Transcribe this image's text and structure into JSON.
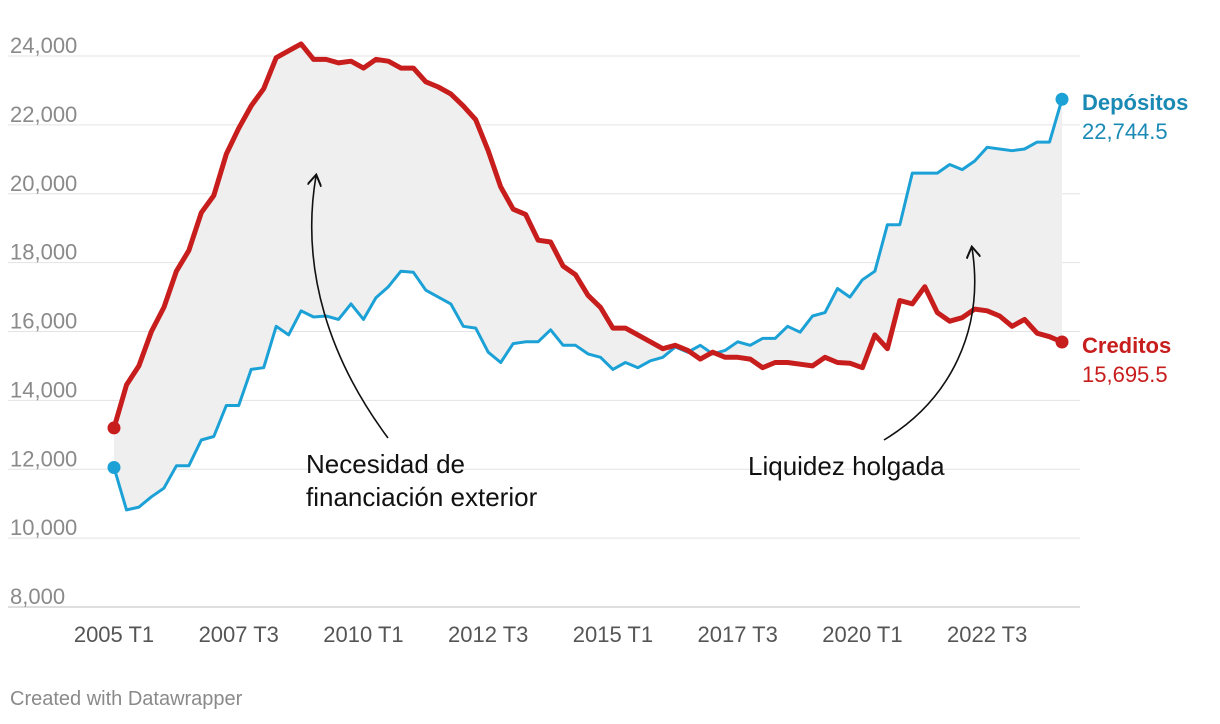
{
  "chart_data": {
    "type": "area",
    "x": [
      "2005 T1",
      "2005 T2",
      "2005 T3",
      "2005 T4",
      "2006 T1",
      "2006 T2",
      "2006 T3",
      "2006 T4",
      "2007 T1",
      "2007 T2",
      "2007 T3",
      "2007 T4",
      "2008 T1",
      "2008 T2",
      "2008 T3",
      "2008 T4",
      "2009 T1",
      "2009 T2",
      "2009 T3",
      "2009 T4",
      "2010 T1",
      "2010 T2",
      "2010 T3",
      "2010 T4",
      "2011 T1",
      "2011 T2",
      "2011 T3",
      "2011 T4",
      "2012 T1",
      "2012 T2",
      "2012 T3",
      "2012 T4",
      "2013 T1",
      "2013 T2",
      "2013 T3",
      "2013 T4",
      "2014 T1",
      "2014 T2",
      "2014 T3",
      "2014 T4",
      "2015 T1",
      "2015 T2",
      "2015 T3",
      "2015 T4",
      "2016 T1",
      "2016 T2",
      "2016 T3",
      "2016 T4",
      "2017 T1",
      "2017 T2",
      "2017 T3",
      "2017 T4",
      "2018 T1",
      "2018 T2",
      "2018 T3",
      "2018 T4",
      "2019 T1",
      "2019 T2",
      "2019 T3",
      "2019 T4",
      "2020 T1",
      "2020 T2",
      "2020 T3",
      "2020 T4",
      "2021 T1",
      "2021 T2",
      "2021 T3",
      "2021 T4",
      "2022 T1",
      "2022 T2",
      "2022 T3",
      "2022 T4",
      "2023 T1",
      "2023 T2",
      "2023 T3",
      "2023 T4",
      "2024 T1"
    ],
    "series": [
      {
        "name": "Depósitos",
        "color": "#1ba1d6",
        "label_color": "#1a8ab5",
        "last_value_label": "22,744.5",
        "values": [
          12050,
          10820,
          10900,
          11200,
          11450,
          12100,
          12100,
          12850,
          12950,
          13850,
          13850,
          14900,
          14950,
          16150,
          15900,
          16600,
          16420,
          16450,
          16350,
          16800,
          16350,
          16980,
          17300,
          17750,
          17720,
          17200,
          17000,
          16800,
          16150,
          16100,
          15400,
          15100,
          15650,
          15700,
          15700,
          16050,
          15600,
          15600,
          15350,
          15250,
          14900,
          15100,
          14950,
          15150,
          15250,
          15550,
          15400,
          15600,
          15350,
          15450,
          15700,
          15600,
          15800,
          15800,
          16150,
          15980,
          16450,
          16550,
          17250,
          17000,
          17500,
          17750,
          19100,
          19100,
          20600,
          20600,
          20600,
          20850,
          20700,
          20950,
          21350,
          21300,
          21250,
          21300,
          21500,
          21500,
          22744.5
        ]
      },
      {
        "name": "Creditos",
        "color": "#c71e1d",
        "label_color": "#c71e1d",
        "last_value_label": "15,695.5",
        "values": [
          13200,
          14450,
          15000,
          16000,
          16700,
          17750,
          18350,
          19450,
          19950,
          21150,
          21900,
          22550,
          23050,
          23950,
          24150,
          24350,
          23900,
          23900,
          23800,
          23850,
          23650,
          23900,
          23850,
          23650,
          23650,
          23250,
          23100,
          22900,
          22550,
          22150,
          21250,
          20200,
          19550,
          19400,
          18650,
          18600,
          17900,
          17650,
          17050,
          16700,
          16100,
          16100,
          15900,
          15700,
          15500,
          15600,
          15450,
          15200,
          15400,
          15250,
          15250,
          15200,
          14950,
          15100,
          15100,
          15050,
          15000,
          15250,
          15100,
          15080,
          14950,
          15900,
          15500,
          16900,
          16800,
          17300,
          16550,
          16300,
          16400,
          16650,
          16600,
          16450,
          16150,
          16350,
          15950,
          15850,
          15695.5
        ]
      }
    ],
    "ylim": [
      8000,
      24500
    ],
    "yticks": [
      8000,
      10000,
      12000,
      14000,
      16000,
      18000,
      20000,
      22000,
      24000
    ],
    "ytick_labels": [
      "8,000",
      "10,000",
      "12,000",
      "14,000",
      "16,000",
      "18,000",
      "20,000",
      "22,000",
      "24,000"
    ],
    "xtick_labels": [
      "2005 T1",
      "2007 T3",
      "2010 T1",
      "2012 T3",
      "2015 T1",
      "2017 T3",
      "2020 T1",
      "2022 T3"
    ],
    "fill_between": true,
    "fill_color": "#efefef",
    "grid": true,
    "annotations": [
      {
        "lines": [
          "Necesidad de",
          "financiación exterior"
        ],
        "x": "2009 T2",
        "y": 20600
      },
      {
        "lines": [
          "Liquidez holgada"
        ],
        "x": "2022 T1",
        "y": 18500
      }
    ]
  },
  "footer": "Created with Datawrapper"
}
